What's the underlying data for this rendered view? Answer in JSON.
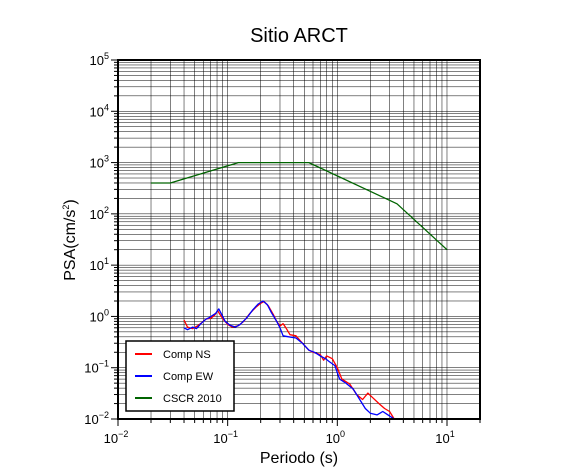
{
  "chart_data": {
    "type": "line",
    "title": "Sitio ARCT",
    "xlabel": "Periodo (s)",
    "ylabel_main": "PSA(cm/s",
    "ylabel_sup": "2",
    "ylabel_close": ")",
    "x_scale": "log",
    "y_scale": "log",
    "xlim": [
      0.01,
      20
    ],
    "ylim": [
      0.01,
      100000
    ],
    "grid": true,
    "legend_position": "bottom-left",
    "x_ticks": [
      {
        "base": "10",
        "exp": "−2",
        "value": 0.01
      },
      {
        "base": "10",
        "exp": "−1",
        "value": 0.1
      },
      {
        "base": "10",
        "exp": "0",
        "value": 1
      },
      {
        "base": "10",
        "exp": "1",
        "value": 10
      }
    ],
    "y_ticks": [
      {
        "base": "10",
        "exp": "−2",
        "value": 0.01
      },
      {
        "base": "10",
        "exp": "−1",
        "value": 0.1
      },
      {
        "base": "10",
        "exp": "0",
        "value": 1
      },
      {
        "base": "10",
        "exp": "1",
        "value": 10
      },
      {
        "base": "10",
        "exp": "2",
        "value": 100
      },
      {
        "base": "10",
        "exp": "3",
        "value": 1000
      },
      {
        "base": "10",
        "exp": "4",
        "value": 10000
      },
      {
        "base": "10",
        "exp": "5",
        "value": 100000
      }
    ],
    "series": [
      {
        "name": "Comp NS",
        "color": "#ff0000",
        "points": [
          [
            0.04,
            0.85
          ],
          [
            0.043,
            0.62
          ],
          [
            0.048,
            0.58
          ],
          [
            0.053,
            0.65
          ],
          [
            0.058,
            0.75
          ],
          [
            0.064,
            0.9
          ],
          [
            0.07,
            0.92
          ],
          [
            0.076,
            1.05
          ],
          [
            0.081,
            1.3
          ],
          [
            0.086,
            1.05
          ],
          [
            0.092,
            0.85
          ],
          [
            0.1,
            0.7
          ],
          [
            0.11,
            0.62
          ],
          [
            0.125,
            0.66
          ],
          [
            0.14,
            0.8
          ],
          [
            0.16,
            1.15
          ],
          [
            0.18,
            1.5
          ],
          [
            0.2,
            1.8
          ],
          [
            0.215,
            1.95
          ],
          [
            0.235,
            1.6
          ],
          [
            0.26,
            1.1
          ],
          [
            0.28,
            0.8
          ],
          [
            0.3,
            0.65
          ],
          [
            0.32,
            0.72
          ],
          [
            0.34,
            0.6
          ],
          [
            0.37,
            0.44
          ],
          [
            0.42,
            0.42
          ],
          [
            0.48,
            0.3
          ],
          [
            0.55,
            0.22
          ],
          [
            0.6,
            0.2
          ],
          [
            0.65,
            0.19
          ],
          [
            0.7,
            0.18
          ],
          [
            0.75,
            0.14
          ],
          [
            0.8,
            0.17
          ],
          [
            0.9,
            0.15
          ],
          [
            1.0,
            0.1
          ],
          [
            1.1,
            0.06
          ],
          [
            1.3,
            0.048
          ],
          [
            1.5,
            0.03
          ],
          [
            1.7,
            0.024
          ],
          [
            1.9,
            0.032
          ],
          [
            2.1,
            0.026
          ],
          [
            2.4,
            0.02
          ],
          [
            2.7,
            0.016
          ],
          [
            3.0,
            0.014
          ],
          [
            3.3,
            0.01
          ]
        ]
      },
      {
        "name": "Comp EW",
        "color": "#0000ff",
        "points": [
          [
            0.04,
            0.6
          ],
          [
            0.043,
            0.55
          ],
          [
            0.048,
            0.62
          ],
          [
            0.052,
            0.58
          ],
          [
            0.057,
            0.72
          ],
          [
            0.063,
            0.88
          ],
          [
            0.068,
            0.95
          ],
          [
            0.073,
            1.05
          ],
          [
            0.078,
            1.15
          ],
          [
            0.083,
            1.4
          ],
          [
            0.088,
            1.1
          ],
          [
            0.095,
            0.8
          ],
          [
            0.105,
            0.67
          ],
          [
            0.118,
            0.62
          ],
          [
            0.13,
            0.7
          ],
          [
            0.15,
            0.95
          ],
          [
            0.17,
            1.35
          ],
          [
            0.19,
            1.75
          ],
          [
            0.21,
            2.0
          ],
          [
            0.23,
            1.7
          ],
          [
            0.25,
            1.2
          ],
          [
            0.28,
            0.8
          ],
          [
            0.3,
            0.6
          ],
          [
            0.32,
            0.42
          ],
          [
            0.36,
            0.4
          ],
          [
            0.42,
            0.38
          ],
          [
            0.48,
            0.3
          ],
          [
            0.55,
            0.22
          ],
          [
            0.62,
            0.2
          ],
          [
            0.7,
            0.17
          ],
          [
            0.78,
            0.15
          ],
          [
            0.85,
            0.13
          ],
          [
            0.95,
            0.11
          ],
          [
            1.05,
            0.06
          ],
          [
            1.2,
            0.05
          ],
          [
            1.4,
            0.038
          ],
          [
            1.6,
            0.024
          ],
          [
            1.8,
            0.016
          ],
          [
            2.0,
            0.013
          ],
          [
            2.3,
            0.012
          ],
          [
            2.6,
            0.014
          ],
          [
            2.9,
            0.012
          ],
          [
            3.3,
            0.01
          ]
        ]
      },
      {
        "name": "CSCR 2010",
        "color": "#006400",
        "points": [
          [
            0.02,
            400
          ],
          [
            0.03,
            400
          ],
          [
            0.125,
            1000
          ],
          [
            0.55,
            1000
          ],
          [
            3.5,
            157
          ],
          [
            10.0,
            20
          ]
        ]
      }
    ]
  }
}
